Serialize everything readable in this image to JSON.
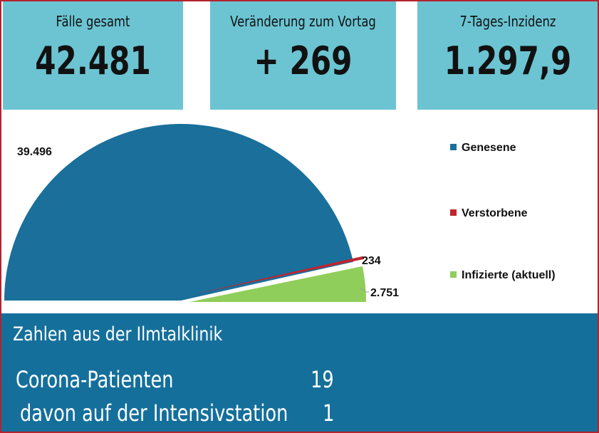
{
  "stats": {
    "cases_label": "Fälle gesamt",
    "cases_value": "42.481",
    "change_label": "Veränderung zum Vortag",
    "change_value": "+ 269",
    "incidence_label": "7-Tages-Inzidenz",
    "incidence_value": "1.297,9"
  },
  "colors": {
    "accent": "#6cc4d2",
    "clinic_bg": "#156f9b",
    "border": "#b3232f"
  },
  "chart_data": {
    "type": "pie",
    "title": "",
    "legend_position": "right",
    "slices": [
      {
        "name": "Genesene",
        "value": 39496,
        "label": "39.496",
        "color": "#1a6f9b"
      },
      {
        "name": "Verstorbene",
        "value": 234,
        "label": "234",
        "color": "#c0252e"
      },
      {
        "name": "Infizierte (aktuell)",
        "value": 2751,
        "label": "2.751",
        "color": "#8fce5a"
      }
    ]
  },
  "clinic": {
    "title": "Zahlen aus der Ilmtalklinik",
    "rows": [
      {
        "label": "Corona-Patienten",
        "value": "19"
      },
      {
        "label": "davon auf der Intensivstation",
        "value": "1"
      }
    ]
  }
}
